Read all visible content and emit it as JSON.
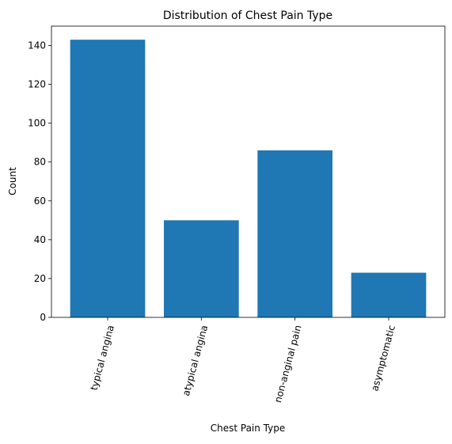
{
  "chart_data": {
    "type": "bar",
    "title": "Distribution of Chest Pain Type",
    "xlabel": "Chest Pain Type",
    "ylabel": "Count",
    "categories": [
      "typical angina",
      "atypical angina",
      "non-anginal pain",
      "asymptomatic"
    ],
    "values": [
      143,
      50,
      86,
      23
    ],
    "ylim": [
      0,
      150
    ],
    "yticks": [
      0,
      20,
      40,
      60,
      80,
      100,
      120,
      140
    ],
    "grid": false,
    "bar_color": "#1f77b4",
    "xtick_rotation": 75
  }
}
